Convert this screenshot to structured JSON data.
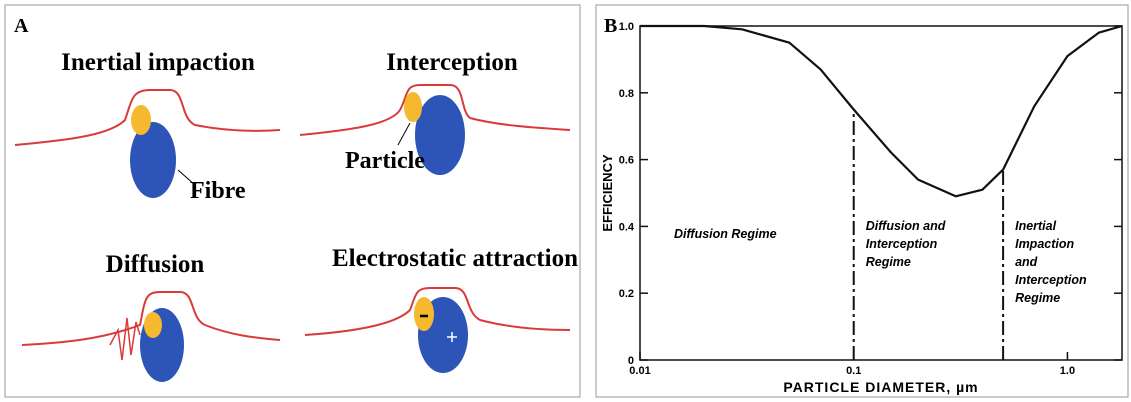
{
  "panel_a": {
    "label": "A",
    "mechanisms": [
      "Inertial impaction",
      "Interception",
      "Diffusion",
      "Electrostatic attraction"
    ],
    "fibre_label": "Fibre",
    "particle_label": "Particle"
  },
  "chart_data": {
    "type": "line",
    "panel_label": "B",
    "x": [
      0.01,
      0.02,
      0.03,
      0.05,
      0.07,
      0.1,
      0.15,
      0.2,
      0.3,
      0.4,
      0.5,
      0.7,
      1.0,
      1.4,
      1.8
    ],
    "values": [
      1.0,
      1.0,
      0.99,
      0.95,
      0.87,
      0.75,
      0.62,
      0.54,
      0.49,
      0.51,
      0.57,
      0.76,
      0.91,
      0.98,
      1.0
    ],
    "color": "#111111",
    "xscale": "log",
    "xlim": [
      0.01,
      1.8
    ],
    "ylim": [
      0,
      1
    ],
    "xticks": [
      0.01,
      0.1,
      {
        "value": 1,
        "label": "1.0"
      }
    ],
    "yticks": [
      0,
      0.2,
      0.4,
      0.6,
      0.8,
      {
        "value": 1,
        "label": "1.0"
      }
    ],
    "xlabel": "PARTICLE DIAMETER, µm",
    "ylabel": "EFFICIENCY",
    "boundaries": [
      0.1,
      0.5
    ],
    "regions": [
      [
        "Diffusion Regime"
      ],
      [
        "Diffusion and",
        "Interception",
        "Regime"
      ],
      [
        "Inertial",
        "Impaction",
        "and",
        "Interception",
        "Regime"
      ]
    ]
  }
}
